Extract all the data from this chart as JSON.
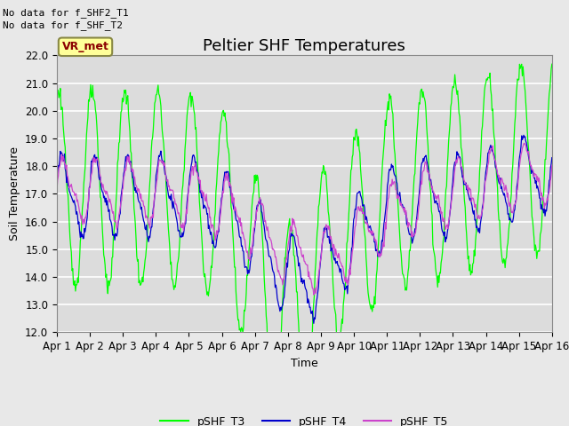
{
  "title": "Peltier SHF Temperatures",
  "xlabel": "Time",
  "ylabel": "Soil Temperature",
  "ylim": [
    12.0,
    22.0
  ],
  "yticks": [
    12.0,
    13.0,
    14.0,
    15.0,
    16.0,
    17.0,
    18.0,
    19.0,
    20.0,
    21.0,
    22.0
  ],
  "xtick_labels": [
    "Apr 1",
    "Apr 2",
    "Apr 3",
    "Apr 4",
    "Apr 5",
    "Apr 6",
    "Apr 7",
    "Apr 8",
    "Apr 9",
    "Apr 10",
    "Apr 11",
    "Apr 12",
    "Apr 13",
    "Apr 14",
    "Apr 15",
    "Apr 16"
  ],
  "no_data_text1": "No data for f_SHF2_T1",
  "no_data_text2": "No data for f_SHF_T2",
  "vr_met_label": "VR_met",
  "legend_labels": [
    "pSHF_T3",
    "pSHF_T4",
    "pSHF_T5"
  ],
  "colors": {
    "pSHF_T3": "#00FF00",
    "pSHF_T4": "#0000CD",
    "pSHF_T5": "#CC44CC"
  },
  "background_color": "#E8E8E8",
  "plot_bg_color": "#E0E0E0",
  "grid_color": "#FFFFFF",
  "title_fontsize": 13,
  "axis_label_fontsize": 9,
  "tick_fontsize": 8.5
}
